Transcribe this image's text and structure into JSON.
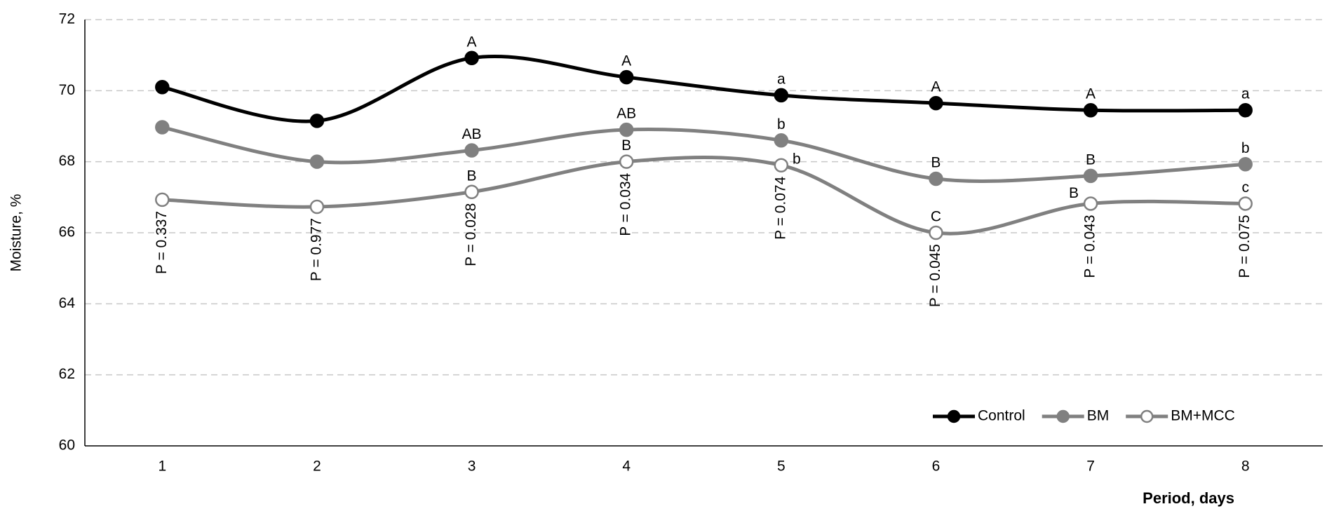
{
  "chart_data": {
    "type": "line",
    "y_label": "Moisture, %",
    "x_label": "Period, days",
    "categories": [
      "1",
      "2",
      "3",
      "4",
      "5",
      "6",
      "7",
      "8"
    ],
    "ylim": [
      60,
      72
    ],
    "yticks": [
      60,
      62,
      64,
      66,
      68,
      70,
      72
    ],
    "grid": true,
    "smooth": true,
    "legend": "bottom-right",
    "series": [
      {
        "name": "Control",
        "color": "#000000",
        "marker_fill": "#000000",
        "values": [
          70.1,
          69.15,
          70.92,
          70.38,
          69.87,
          69.65,
          69.45,
          69.45
        ],
        "letters": [
          null,
          null,
          "A",
          "A",
          "a",
          "A",
          "A",
          "a"
        ]
      },
      {
        "name": "BM",
        "color": "#808080",
        "marker_fill": "#808080",
        "values": [
          68.97,
          68.0,
          68.32,
          68.9,
          68.6,
          67.52,
          67.6,
          67.93
        ],
        "letters": [
          null,
          null,
          "AB",
          "AB",
          "b",
          "B",
          "B",
          "b"
        ]
      },
      {
        "name": "BM+MCC",
        "color": "#808080",
        "marker_fill": "#ffffff",
        "values": [
          66.93,
          66.73,
          67.15,
          68.0,
          67.9,
          66.0,
          66.82,
          66.82
        ],
        "letters": [
          null,
          null,
          "B",
          "B",
          "b",
          "C",
          "B",
          "c"
        ]
      }
    ],
    "annotations": [
      "P = 0.337",
      "P = 0.977",
      "P = 0.028",
      "P = 0.034",
      "P = 0.074",
      "P = 0.045",
      "P = 0.043",
      "P = 0.075"
    ]
  }
}
